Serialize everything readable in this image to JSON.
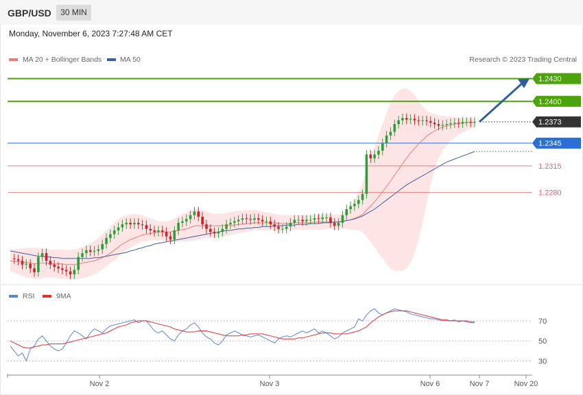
{
  "header": {
    "symbol": "GBP/USD",
    "timeframe": "30 MIN"
  },
  "datetime": "Monday, November 6, 2023 7:27:48 AM CET",
  "copyright": "Research © 2023 Trading Central",
  "colors": {
    "resistance": "#4ca30d",
    "pivot": "#2b6fd6",
    "support": "#e0646a",
    "current": "#333333",
    "ma20": "#f07a7a",
    "ma50": "#3b5f9e",
    "band": "#fde1e1",
    "candle_up": "#2e9e3c",
    "candle_down": "#c8252b",
    "rsi": "#5a85d6",
    "rsi_ma": "#e03030",
    "arrow": "#2d5f9e"
  },
  "chart_data": [
    {
      "type": "line",
      "title": "",
      "instrument": "GBP/USD",
      "timeframe": "30 MIN",
      "legend": [
        {
          "name": "MA 20 + Bollinger Bands",
          "color": "#f07a7a"
        },
        {
          "name": "MA 50",
          "color": "#3b5f9e"
        }
      ],
      "legend_position": "top-left",
      "ylim": [
        1.2155,
        1.2445
      ],
      "x_ticks": [
        "Nov 2",
        "Nov 3",
        "Nov 6",
        "Nov 7",
        "Nov 20"
      ],
      "levels": [
        {
          "value": 1.243,
          "label": "1.2430",
          "kind": "resistance"
        },
        {
          "value": 1.24,
          "label": "1.2400",
          "kind": "resistance"
        },
        {
          "value": 1.2373,
          "label": "1.2373",
          "kind": "current"
        },
        {
          "value": 1.2345,
          "label": "1.2345",
          "kind": "pivot"
        },
        {
          "value": 1.2315,
          "label": "1.2315",
          "kind": "support"
        },
        {
          "value": 1.228,
          "label": "1.2280",
          "kind": "support"
        }
      ],
      "forecast_arrow": {
        "from": 1.2373,
        "to": 1.243,
        "direction": "up"
      },
      "price": [
        1.2193,
        1.2192,
        1.219,
        1.2185,
        1.2186,
        1.218,
        1.2175,
        1.2195,
        1.22,
        1.219,
        1.2185,
        1.2182,
        1.218,
        1.2178,
        1.2176,
        1.2172,
        1.2178,
        1.2195,
        1.22,
        1.2204,
        1.2202,
        1.2203,
        1.2205,
        1.2212,
        1.222,
        1.2225,
        1.223,
        1.2234,
        1.2238,
        1.224,
        1.2238,
        1.224,
        1.2238,
        1.2237,
        1.2232,
        1.223,
        1.2228,
        1.223,
        1.2228,
        1.2222,
        1.2218,
        1.223,
        1.224,
        1.2242,
        1.2245,
        1.225,
        1.2255,
        1.2248,
        1.2238,
        1.2232,
        1.2228,
        1.2226,
        1.2228,
        1.2232,
        1.2238,
        1.224,
        1.2242,
        1.2244,
        1.2246,
        1.2245,
        1.2244,
        1.2246,
        1.2244,
        1.2242,
        1.2242,
        1.2238,
        1.2235,
        1.2232,
        1.2232,
        1.2235,
        1.224,
        1.2244,
        1.2244,
        1.2242,
        1.2244,
        1.2244,
        1.2246,
        1.2245,
        1.2247,
        1.2247,
        1.224,
        1.2236,
        1.224,
        1.225,
        1.2258,
        1.2262,
        1.2265,
        1.227,
        1.2278,
        1.233,
        1.2325,
        1.233,
        1.2335,
        1.2345,
        1.2355,
        1.236,
        1.237,
        1.2375,
        1.2378,
        1.2376,
        1.2377,
        1.2375,
        1.2374,
        1.2375,
        1.2374,
        1.2372,
        1.237,
        1.2368,
        1.2369,
        1.237,
        1.2371,
        1.2372,
        1.2371,
        1.2373,
        1.2373,
        1.2372,
        1.2373
      ],
      "ma20": [
        1.219,
        1.2189,
        1.2189,
        1.2188,
        1.2188,
        1.2187,
        1.2186,
        1.2187,
        1.2187,
        1.2187,
        1.2186,
        1.2186,
        1.2186,
        1.2186,
        1.2185,
        1.2185,
        1.2185,
        1.2186,
        1.2187,
        1.2188,
        1.2189,
        1.219,
        1.2192,
        1.2194,
        1.2197,
        1.22,
        1.2204,
        1.2208,
        1.2212,
        1.2215,
        1.2218,
        1.222,
        1.2222,
        1.2224,
        1.2225,
        1.2226,
        1.2227,
        1.2228,
        1.2228,
        1.2228,
        1.2228,
        1.2229,
        1.223,
        1.2231,
        1.2232,
        1.2234,
        1.2236,
        1.2236,
        1.2236,
        1.2236,
        1.2236,
        1.2236,
        1.2236,
        1.2236,
        1.2237,
        1.2237,
        1.2237,
        1.2238,
        1.2238,
        1.2239,
        1.2239,
        1.224,
        1.224,
        1.224,
        1.224,
        1.224,
        1.224,
        1.2239,
        1.2239,
        1.2239,
        1.2239,
        1.224,
        1.224,
        1.224,
        1.224,
        1.224,
        1.2241,
        1.2241,
        1.2241,
        1.2241,
        1.2241,
        1.2241,
        1.2241,
        1.2242,
        1.2243,
        1.2244,
        1.2246,
        1.2248,
        1.2251,
        1.2257,
        1.2262,
        1.2268,
        1.2274,
        1.2281,
        1.2288,
        1.2295,
        1.2303,
        1.231,
        1.2318,
        1.2325,
        1.2332,
        1.2338,
        1.2344,
        1.2349,
        1.2354,
        1.2358,
        1.2361,
        1.2364,
        1.2366,
        1.2368,
        1.2369,
        1.237,
        1.2371,
        1.2371,
        1.2372,
        1.2372,
        1.2372
      ],
      "ma50": [
        1.2203,
        1.2202,
        1.2201,
        1.22,
        1.2199,
        1.2198,
        1.2197,
        1.2196,
        1.2196,
        1.2195,
        1.2195,
        1.2194,
        1.2194,
        1.2193,
        1.2193,
        1.2193,
        1.2193,
        1.2193,
        1.2193,
        1.2193,
        1.2193,
        1.2194,
        1.2194,
        1.2195,
        1.2196,
        1.2197,
        1.2198,
        1.2199,
        1.22,
        1.2201,
        1.2203,
        1.2204,
        1.2206,
        1.2207,
        1.2209,
        1.221,
        1.2212,
        1.2213,
        1.2214,
        1.2215,
        1.2216,
        1.2217,
        1.2218,
        1.2219,
        1.222,
        1.2221,
        1.2222,
        1.2223,
        1.2224,
        1.2225,
        1.2226,
        1.2227,
        1.2228,
        1.2229,
        1.223,
        1.223,
        1.2231,
        1.2232,
        1.2232,
        1.2233,
        1.2233,
        1.2234,
        1.2234,
        1.2235,
        1.2235,
        1.2235,
        1.2236,
        1.2236,
        1.2236,
        1.2237,
        1.2237,
        1.2237,
        1.2238,
        1.2238,
        1.2238,
        1.2239,
        1.2239,
        1.2239,
        1.224,
        1.224,
        1.224,
        1.2241,
        1.2241,
        1.2242,
        1.2243,
        1.2244,
        1.2245,
        1.2247,
        1.2249,
        1.2252,
        1.2255,
        1.2258,
        1.2262,
        1.2266,
        1.227,
        1.2274,
        1.2278,
        1.2282,
        1.2286,
        1.229,
        1.2293,
        1.2296,
        1.2299,
        1.2302,
        1.2305,
        1.2308,
        1.2311,
        1.2314,
        1.2317,
        1.232,
        1.2322,
        1.2324,
        1.2326,
        1.2328,
        1.233,
        1.2332,
        1.2334
      ],
      "band_upper": [
        1.2205,
        1.2205,
        1.2206,
        1.2206,
        1.2207,
        1.2207,
        1.2207,
        1.2207,
        1.2206,
        1.2206,
        1.2205,
        1.2205,
        1.2205,
        1.2205,
        1.2204,
        1.2204,
        1.2205,
        1.2206,
        1.2208,
        1.221,
        1.2213,
        1.2216,
        1.222,
        1.2225,
        1.223,
        1.2235,
        1.224,
        1.2245,
        1.2248,
        1.225,
        1.2251,
        1.2252,
        1.2251,
        1.225,
        1.2248,
        1.2246,
        1.2244,
        1.2242,
        1.2242,
        1.2242,
        1.2243,
        1.2246,
        1.2249,
        1.2252,
        1.2254,
        1.2256,
        1.2258,
        1.2258,
        1.2257,
        1.2255,
        1.2253,
        1.2252,
        1.2252,
        1.2252,
        1.2253,
        1.2254,
        1.2255,
        1.2256,
        1.2256,
        1.2257,
        1.2257,
        1.2257,
        1.2256,
        1.2255,
        1.2254,
        1.2253,
        1.2252,
        1.2251,
        1.225,
        1.225,
        1.225,
        1.225,
        1.225,
        1.225,
        1.225,
        1.225,
        1.225,
        1.2251,
        1.2251,
        1.2251,
        1.2251,
        1.2251,
        1.2251,
        1.2252,
        1.2256,
        1.2262,
        1.227,
        1.228,
        1.2292,
        1.231,
        1.2325,
        1.234,
        1.2355,
        1.237,
        1.2385,
        1.2398,
        1.2408,
        1.2414,
        1.2417,
        1.2417,
        1.2414,
        1.2408,
        1.24,
        1.2393,
        1.2388,
        1.2385,
        1.2383,
        1.2382,
        1.2381,
        1.238,
        1.238,
        1.2379,
        1.2379,
        1.2378,
        1.2378,
        1.2377,
        1.2377
      ],
      "band_lower": [
        1.2176,
        1.2174,
        1.2172,
        1.217,
        1.2168,
        1.2167,
        1.2166,
        1.2166,
        1.2167,
        1.2168,
        1.2168,
        1.2168,
        1.2167,
        1.2166,
        1.2166,
        1.2166,
        1.2166,
        1.2166,
        1.2167,
        1.2168,
        1.217,
        1.2172,
        1.2175,
        1.2179,
        1.2183,
        1.2187,
        1.2191,
        1.2196,
        1.22,
        1.2204,
        1.2207,
        1.221,
        1.2213,
        1.2215,
        1.2216,
        1.2217,
        1.2217,
        1.2217,
        1.2217,
        1.2216,
        1.2215,
        1.2215,
        1.2215,
        1.2215,
        1.2215,
        1.2216,
        1.2217,
        1.2218,
        1.2219,
        1.222,
        1.2221,
        1.2222,
        1.2222,
        1.2222,
        1.2223,
        1.2224,
        1.2225,
        1.2226,
        1.2227,
        1.2228,
        1.2229,
        1.223,
        1.223,
        1.223,
        1.223,
        1.223,
        1.223,
        1.223,
        1.223,
        1.223,
        1.223,
        1.2231,
        1.2231,
        1.2231,
        1.2231,
        1.2231,
        1.2231,
        1.2231,
        1.2231,
        1.2232,
        1.2232,
        1.2232,
        1.2232,
        1.2232,
        1.2232,
        1.2231,
        1.2231,
        1.223,
        1.2228,
        1.2222,
        1.2215,
        1.2208,
        1.22,
        1.2193,
        1.2186,
        1.218,
        1.2177,
        1.2176,
        1.2177,
        1.218,
        1.2188,
        1.22,
        1.2218,
        1.224,
        1.2265,
        1.229,
        1.231,
        1.2325,
        1.2335,
        1.2342,
        1.2348,
        1.2352,
        1.2356,
        1.2359,
        1.2362,
        1.2364,
        1.2366
      ]
    },
    {
      "type": "line",
      "title": "",
      "legend": [
        {
          "name": "RSI",
          "color": "#5a85d6"
        },
        {
          "name": "9MA",
          "color": "#e03030"
        }
      ],
      "ylim": [
        20,
        85
      ],
      "y_ticks": [
        30,
        50,
        70
      ],
      "rsi": [
        45,
        40,
        35,
        38,
        30,
        42,
        45,
        52,
        55,
        50,
        45,
        42,
        40,
        42,
        48,
        55,
        60,
        58,
        55,
        52,
        58,
        62,
        60,
        58,
        62,
        65,
        66,
        67,
        68,
        69,
        70,
        71,
        68,
        70,
        70,
        65,
        60,
        58,
        60,
        56,
        52,
        50,
        56,
        60,
        62,
        66,
        68,
        64,
        58,
        54,
        52,
        48,
        46,
        50,
        56,
        58,
        60,
        58,
        56,
        55,
        54,
        55,
        56,
        54,
        52,
        50,
        48,
        52,
        54,
        55,
        54,
        56,
        58,
        60,
        58,
        60,
        62,
        58,
        60,
        58,
        55,
        52,
        54,
        58,
        60,
        62,
        64,
        72,
        70,
        76,
        80,
        82,
        78,
        76,
        78,
        80,
        82,
        81,
        80,
        79,
        77,
        76,
        75,
        74,
        73,
        72,
        72,
        71,
        70,
        70,
        70,
        71,
        69,
        70,
        69,
        68,
        68
      ],
      "rsi_ma": [
        50,
        48,
        46,
        44,
        43,
        43,
        44,
        45,
        46,
        46,
        47,
        47,
        47,
        47,
        48,
        49,
        50,
        51,
        52,
        53,
        54,
        55,
        56,
        57,
        58,
        60,
        62,
        64,
        65,
        66,
        68,
        69,
        70,
        70,
        70,
        69,
        68,
        67,
        66,
        65,
        64,
        62,
        61,
        60,
        59,
        59,
        59,
        60,
        60,
        60,
        59,
        58,
        57,
        56,
        55,
        55,
        55,
        55,
        56,
        56,
        57,
        57,
        57,
        57,
        56,
        55,
        54,
        53,
        52,
        52,
        52,
        52,
        53,
        53,
        54,
        55,
        56,
        57,
        58,
        58,
        58,
        57,
        57,
        57,
        57,
        58,
        59,
        60,
        62,
        64,
        68,
        71,
        74,
        76,
        78,
        79,
        80,
        80,
        80,
        80,
        79,
        78,
        77,
        76,
        75,
        74,
        73,
        72,
        71,
        71,
        70,
        70,
        70,
        70,
        70,
        69,
        69
      ]
    }
  ]
}
